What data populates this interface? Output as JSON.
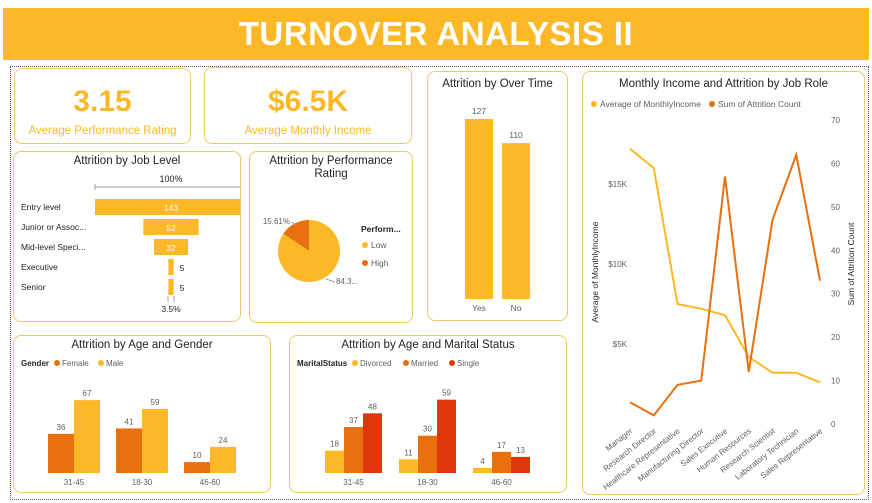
{
  "banner": {
    "title": "TURNOVER ANALYSIS II"
  },
  "kpis": {
    "performance": {
      "value": "3.15",
      "label": "Average Performance Rating"
    },
    "income": {
      "value": "$6.5K",
      "label": "Average Monthly Income"
    }
  },
  "colors": {
    "yellow": "#fdb827",
    "orange": "#e8700f",
    "red": "#e0360e",
    "grid": "#c8c6c4",
    "text": "#605e5c"
  },
  "chart_data": [
    {
      "id": "job_level",
      "type": "funnel",
      "title": "Attrition by Job Level",
      "top_label": "100%",
      "bottom_label": "3.5%",
      "categories": [
        "Entry level",
        "Junior or Assoc...",
        "Mid-level Speci...",
        "Executive",
        "Senior"
      ],
      "values": [
        143,
        52,
        32,
        5,
        5
      ]
    },
    {
      "id": "performance",
      "type": "pie",
      "title": "Attrition by Performance Rating",
      "legend_title": "Perform...",
      "labels": [
        "Low",
        "High"
      ],
      "values": [
        84.39,
        15.61
      ],
      "data_labels": [
        "84.3...",
        "15.61%"
      ],
      "colors": [
        "#fdb827",
        "#e8700f"
      ]
    },
    {
      "id": "overtime",
      "type": "bar",
      "title": "Attrition by Over Time",
      "categories": [
        "Yes",
        "No"
      ],
      "values": [
        127,
        110
      ]
    },
    {
      "id": "income_role",
      "type": "line",
      "title": "Monthly Income and Attrition by Job Role",
      "categories": [
        "Manager",
        "Research Director",
        "Healthcare Representative",
        "Manufacturing Director",
        "Sales Executive",
        "Human Resources",
        "Research Scientist",
        "Laboratory Technician",
        "Sales Representative"
      ],
      "series": [
        {
          "name": "Average of MonthlyIncome",
          "axis": "left",
          "values": [
            17200,
            16000,
            7500,
            7200,
            6800,
            4200,
            3200,
            3200,
            2600
          ]
        },
        {
          "name": "Sum of Attrition Count",
          "axis": "right",
          "values": [
            5,
            2,
            9,
            10,
            57,
            12,
            47,
            62,
            33
          ]
        }
      ],
      "ylabel_left": "Average of MonthlyIncome",
      "ylabel_right": "Sum of Attrition Count",
      "left_ticks": [
        {
          "v": 5000,
          "t": "$5K"
        },
        {
          "v": 10000,
          "t": "$10K"
        },
        {
          "v": 15000,
          "t": "$15K"
        }
      ],
      "right_ticks": [
        0,
        10,
        20,
        30,
        40,
        50,
        60,
        70
      ],
      "ylim_left": [
        0,
        19000
      ],
      "ylim_right": [
        0,
        70
      ]
    },
    {
      "id": "age_gender",
      "type": "bar",
      "title": "Attrition by Age and Gender",
      "legend_title": "Gender",
      "categories": [
        "31-45",
        "18-30",
        "46-60"
      ],
      "series": [
        {
          "name": "Female",
          "values": [
            36,
            41,
            10
          ]
        },
        {
          "name": "Male",
          "values": [
            67,
            59,
            24
          ]
        }
      ],
      "ylim": [
        0,
        80
      ]
    },
    {
      "id": "age_marital",
      "type": "bar",
      "title": "Attrition by Age and Marital Status",
      "legend_title": "MaritalStatus",
      "categories": [
        "31-45",
        "18-30",
        "46-60"
      ],
      "series": [
        {
          "name": "Divorced",
          "values": [
            18,
            11,
            4
          ]
        },
        {
          "name": "Married",
          "values": [
            37,
            30,
            17
          ]
        },
        {
          "name": "Single",
          "values": [
            48,
            59,
            13
          ]
        }
      ],
      "ylim": [
        0,
        70
      ]
    }
  ]
}
